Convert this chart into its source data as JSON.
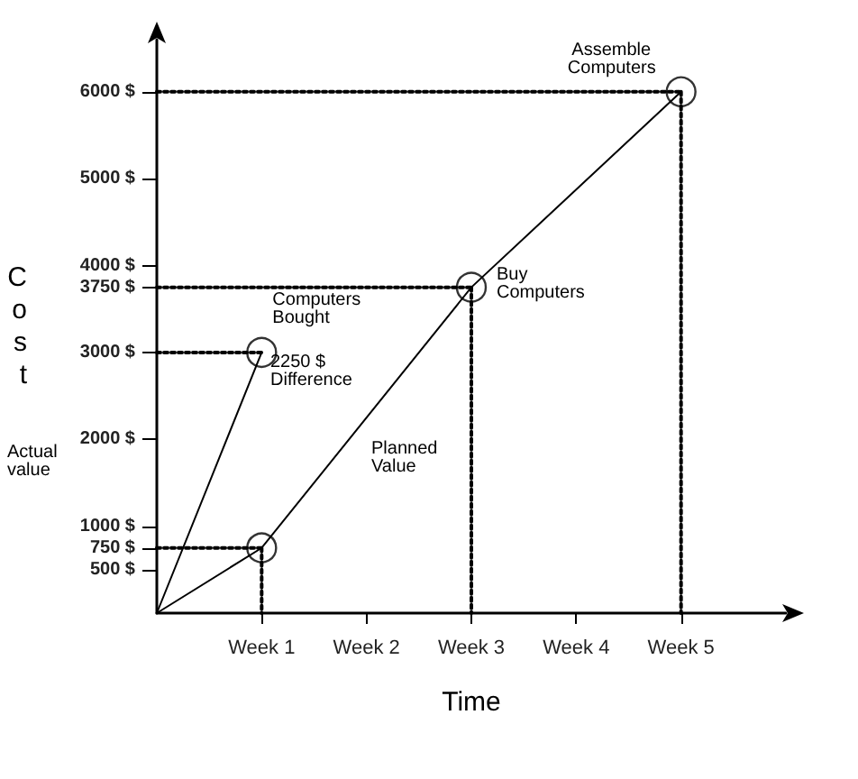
{
  "chart_data": {
    "type": "line",
    "xlabel": "Time",
    "ylabel": "Cost",
    "categories": [
      null,
      "Week 1",
      "Week 2",
      "Week 3",
      "Week 4",
      "Week 5",
      null
    ],
    "ylim": [
      0,
      6600
    ],
    "yticks": [
      {
        "value": 500,
        "label": "500 $"
      },
      {
        "value": 750,
        "label": "750 $"
      },
      {
        "value": 1000,
        "label": "1000 $"
      },
      {
        "value": 2000,
        "label": "2000 $"
      },
      {
        "value": 3000,
        "label": "3000 $"
      },
      {
        "value": 3750,
        "label": "3750 $"
      },
      {
        "value": 4000,
        "label": "4000 $"
      },
      {
        "value": 5000,
        "label": "5000 $"
      },
      {
        "value": 6000,
        "label": "6000 $"
      }
    ],
    "grid": false,
    "marker": "none",
    "line_style": "solid",
    "series": [
      {
        "color": "#000000",
        "values": [
          0,
          750,
          null,
          3750,
          null,
          6000,
          null
        ]
      },
      {
        "color": "#000000",
        "values": [
          0,
          3000,
          null,
          null,
          null,
          null,
          null
        ]
      },
      {
        "color": "#000000",
        "line_style": "dotted",
        "values": [
          3000,
          3000,
          null,
          null,
          null,
          null,
          null
        ]
      },
      {
        "color": "#000000",
        "line_style": "dotted",
        "values": [
          750,
          750,
          null,
          null,
          null,
          null,
          null
        ]
      },
      {
        "color": "#000000",
        "line_style": "dotted",
        "values": [
          3750,
          3750,
          3750,
          3750,
          null,
          null,
          null
        ]
      },
      {
        "color": "#000000",
        "line_style": "dotted",
        "values": [
          6000,
          6000,
          6000,
          6000,
          6000,
          6000,
          null
        ]
      },
      {
        "color": "#000000",
        "line_style": "dotted",
        "x": [
          "Week 1",
          "Week 1"
        ],
        "values": [
          750,
          0
        ]
      },
      {
        "color": "#000000",
        "line_style": "dotted",
        "x": [
          "Week 3",
          "Week 3"
        ],
        "values": [
          3750,
          0
        ]
      },
      {
        "color": "#000000",
        "line_style": "dotted",
        "x": [
          "Week 5",
          "Week 5"
        ],
        "values": [
          6000,
          0
        ]
      },
      {
        "type": "scatter",
        "marker": "circle",
        "color": "#000000",
        "x": [
          "Week 1",
          "Week 1",
          "Week 3",
          "Week 5"
        ],
        "values": [
          3000,
          750,
          3750,
          6000
        ]
      }
    ],
    "annotations": [
      {
        "text": "Assemble Computers",
        "x": "Week 5",
        "y": 6000
      },
      {
        "text": "Buy Computers",
        "x": "Week 3",
        "y": 3750
      },
      {
        "text": "Computers Bought",
        "x": "Week 1",
        "y": 3000
      },
      "2250 $ Difference",
      "Planned Value",
      "Actual value"
    ]
  }
}
